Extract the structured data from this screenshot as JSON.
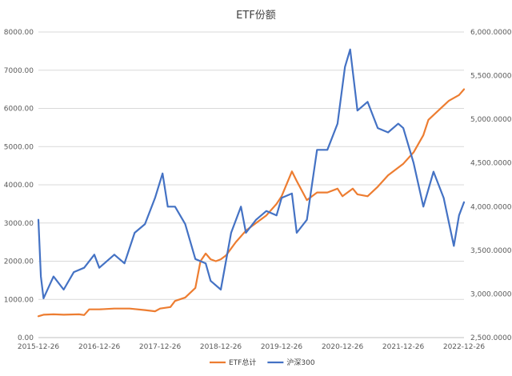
{
  "chart_data": {
    "type": "line",
    "title": "ETF份额",
    "x_dates": [
      "2015-12-26",
      "2016-12-26",
      "2017-12-26",
      "2018-12-26",
      "2019-12-26",
      "2020-12-26",
      "2021-12-26",
      "2022-12-26"
    ],
    "x_tick_labels": [
      "2015-12-26",
      "2016-12-26",
      "2017-12-26",
      "2018-12-26",
      "2019-12-26",
      "2020-12-26",
      "2021-12-26",
      "2022-12-26"
    ],
    "x_range": [
      "2015-12-26",
      "2022-12-26"
    ],
    "y_left": {
      "range": [
        0,
        8000
      ],
      "tick_labels": [
        "0.00",
        "1000.00",
        "2000.00",
        "3000.00",
        "4000.00",
        "5000.00",
        "6000.00",
        "7000.00",
        "8000.00"
      ]
    },
    "y_right": {
      "range": [
        2500,
        6000
      ],
      "tick_labels": [
        "2,500.0000",
        "3,000.0000",
        "3,500.0000",
        "4,000.0000",
        "4,500.0000",
        "5,000.0000",
        "5,500.0000",
        "6,000.0000"
      ]
    },
    "grid": true,
    "legend_position": "bottom-right",
    "series": [
      {
        "name": "ETF总计",
        "axis": "left",
        "color": "#ED7D31",
        "points": [
          [
            "2015-12-26",
            560
          ],
          [
            "2016-01-26",
            600
          ],
          [
            "2016-03-26",
            610
          ],
          [
            "2016-05-26",
            600
          ],
          [
            "2016-08-26",
            610
          ],
          [
            "2016-09-26",
            590
          ],
          [
            "2016-10-26",
            740
          ],
          [
            "2016-12-26",
            740
          ],
          [
            "2017-03-26",
            760
          ],
          [
            "2017-06-26",
            760
          ],
          [
            "2017-09-26",
            720
          ],
          [
            "2017-11-26",
            690
          ],
          [
            "2017-12-26",
            760
          ],
          [
            "2018-02-26",
            800
          ],
          [
            "2018-03-26",
            960
          ],
          [
            "2018-05-26",
            1050
          ],
          [
            "2018-07-26",
            1300
          ],
          [
            "2018-08-26",
            2000
          ],
          [
            "2018-09-26",
            2200
          ],
          [
            "2018-10-26",
            2050
          ],
          [
            "2018-11-26",
            2000
          ],
          [
            "2018-12-26",
            2050
          ],
          [
            "2019-01-26",
            2150
          ],
          [
            "2019-03-26",
            2500
          ],
          [
            "2019-05-26",
            2800
          ],
          [
            "2019-07-26",
            3000
          ],
          [
            "2019-09-26",
            3200
          ],
          [
            "2019-11-26",
            3500
          ],
          [
            "2019-12-26",
            3700
          ],
          [
            "2020-02-26",
            4350
          ],
          [
            "2020-03-26",
            4100
          ],
          [
            "2020-05-26",
            3600
          ],
          [
            "2020-07-26",
            3800
          ],
          [
            "2020-09-26",
            3800
          ],
          [
            "2020-11-26",
            3900
          ],
          [
            "2020-12-26",
            3700
          ],
          [
            "2021-02-26",
            3900
          ],
          [
            "2021-03-26",
            3750
          ],
          [
            "2021-05-26",
            3700
          ],
          [
            "2021-07-26",
            3950
          ],
          [
            "2021-09-26",
            4250
          ],
          [
            "2021-11-26",
            4450
          ],
          [
            "2021-12-26",
            4550
          ],
          [
            "2022-02-26",
            4850
          ],
          [
            "2022-04-26",
            5300
          ],
          [
            "2022-05-26",
            5700
          ],
          [
            "2022-07-26",
            5950
          ],
          [
            "2022-09-26",
            6200
          ],
          [
            "2022-11-26",
            6350
          ],
          [
            "2022-12-26",
            6500
          ]
        ]
      },
      {
        "name": "沪深300",
        "axis": "right",
        "color": "#4472C4",
        "points": [
          [
            "2015-12-26",
            3850
          ],
          [
            "2016-01-10",
            3200
          ],
          [
            "2016-01-26",
            2950
          ],
          [
            "2016-03-26",
            3200
          ],
          [
            "2016-05-26",
            3050
          ],
          [
            "2016-07-26",
            3250
          ],
          [
            "2016-09-26",
            3300
          ],
          [
            "2016-11-26",
            3450
          ],
          [
            "2016-12-26",
            3300
          ],
          [
            "2017-03-26",
            3450
          ],
          [
            "2017-05-26",
            3350
          ],
          [
            "2017-07-26",
            3700
          ],
          [
            "2017-09-26",
            3800
          ],
          [
            "2017-11-26",
            4100
          ],
          [
            "2018-01-10",
            4380
          ],
          [
            "2018-02-10",
            4000
          ],
          [
            "2018-03-26",
            4000
          ],
          [
            "2018-05-26",
            3800
          ],
          [
            "2018-07-26",
            3400
          ],
          [
            "2018-09-26",
            3350
          ],
          [
            "2018-10-26",
            3150
          ],
          [
            "2018-12-26",
            3050
          ],
          [
            "2019-02-26",
            3700
          ],
          [
            "2019-04-26",
            4000
          ],
          [
            "2019-05-26",
            3700
          ],
          [
            "2019-07-26",
            3850
          ],
          [
            "2019-09-26",
            3950
          ],
          [
            "2019-11-26",
            3900
          ],
          [
            "2019-12-26",
            4100
          ],
          [
            "2020-02-26",
            4150
          ],
          [
            "2020-03-26",
            3700
          ],
          [
            "2020-05-26",
            3850
          ],
          [
            "2020-07-26",
            4650
          ],
          [
            "2020-09-26",
            4650
          ],
          [
            "2020-11-26",
            4950
          ],
          [
            "2021-01-10",
            5600
          ],
          [
            "2021-02-10",
            5800
          ],
          [
            "2021-03-26",
            5100
          ],
          [
            "2021-05-26",
            5200
          ],
          [
            "2021-07-26",
            4900
          ],
          [
            "2021-09-26",
            4850
          ],
          [
            "2021-11-26",
            4950
          ],
          [
            "2021-12-26",
            4900
          ],
          [
            "2022-02-26",
            4500
          ],
          [
            "2022-04-26",
            4000
          ],
          [
            "2022-06-26",
            4400
          ],
          [
            "2022-08-26",
            4100
          ],
          [
            "2022-10-26",
            3550
          ],
          [
            "2022-11-26",
            3900
          ],
          [
            "2022-12-26",
            4050
          ]
        ]
      }
    ]
  }
}
